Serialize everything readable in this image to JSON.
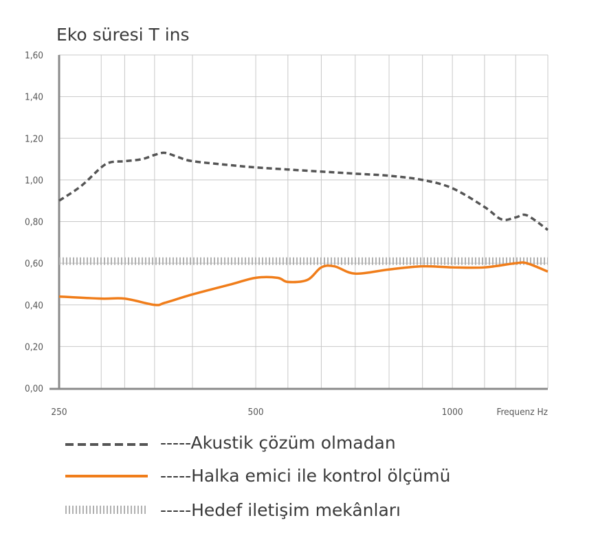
{
  "chart_data": {
    "type": "line",
    "title": "Eko süresi T ins",
    "xlabel": "Frequenz Hz",
    "ylabel": "",
    "x_scale": "log",
    "xlim": [
      250,
      1400
    ],
    "ylim": [
      0,
      1.6
    ],
    "y_ticks": [
      "0,00",
      "0,20",
      "0,40",
      "0,60",
      "0,80",
      "1,00",
      "1,20",
      "1,40",
      "1,60"
    ],
    "y_tick_values": [
      0,
      0.2,
      0.4,
      0.6,
      0.8,
      1.0,
      1.2,
      1.4,
      1.6
    ],
    "x_ticks": [
      "250",
      "500",
      "1000"
    ],
    "x_tick_values": [
      250,
      500,
      1000
    ],
    "x_grid": [
      250,
      290,
      315,
      350,
      400,
      500,
      560,
      630,
      710,
      800,
      900,
      1000,
      1120,
      1250,
      1400
    ],
    "grid": true,
    "legend_position": "bottom",
    "colors": {
      "series1": "#555555",
      "series2": "#f07d1a",
      "series3": "#b0b0b0",
      "grid": "#c8c8c8",
      "axis": "#8a8a8a"
    },
    "series": [
      {
        "name": "-----Akustik çözüm olmadan",
        "style": "dashed",
        "x": [
          250,
          270,
          290,
          300,
          315,
          335,
          350,
          363,
          380,
          400,
          460,
          500,
          560,
          630,
          710,
          800,
          900,
          1000,
          1120,
          1190,
          1250,
          1300,
          1400
        ],
        "y": [
          0.9,
          0.97,
          1.06,
          1.085,
          1.09,
          1.1,
          1.12,
          1.13,
          1.11,
          1.09,
          1.07,
          1.06,
          1.05,
          1.04,
          1.03,
          1.02,
          1.0,
          0.96,
          0.87,
          0.81,
          0.82,
          0.83,
          0.76
        ]
      },
      {
        "name": "-----Halka emici ile kontrol ölçümü",
        "style": "solid",
        "x": [
          250,
          290,
          315,
          350,
          363,
          400,
          460,
          500,
          540,
          560,
          600,
          630,
          660,
          710,
          800,
          900,
          1000,
          1120,
          1250,
          1300,
          1400
        ],
        "y": [
          0.44,
          0.43,
          0.43,
          0.4,
          0.41,
          0.45,
          0.5,
          0.53,
          0.53,
          0.51,
          0.52,
          0.58,
          0.585,
          0.55,
          0.57,
          0.585,
          0.58,
          0.58,
          0.6,
          0.6,
          0.56
        ]
      },
      {
        "name": "-----Hedef iletişim mekânları",
        "style": "dotted",
        "x": [
          250,
          1400
        ],
        "y": [
          0.61,
          0.61
        ]
      }
    ]
  }
}
